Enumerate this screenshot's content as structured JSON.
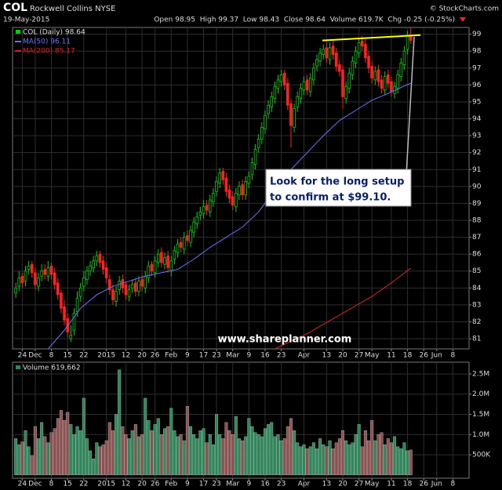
{
  "header": {
    "symbol": "COL",
    "name": "Rockwell Collins NYSE",
    "source": "© StockCharts.com",
    "date": "19-May-2015",
    "quote": "Open 98.95  High 99.37  Low 98.43  Close 98.64  Volume 619.7K  Chg -0.25 (-0.25%)"
  },
  "chart_data": [
    {
      "type": "candlestick",
      "name": "COL (Daily) 98.64",
      "up_color": "#00d000",
      "down_color": "#ff2020",
      "open": [
        83.7,
        84.1,
        84.7,
        84.4,
        85.1,
        85.4,
        84.9,
        84.1,
        84.7,
        85.1,
        84.7,
        85.3,
        84.9,
        84.3,
        83.7,
        82.9,
        82.2,
        81.0,
        81.5,
        82.6,
        83.5,
        84.1,
        84.5,
        85.0,
        85.2,
        85.6,
        86.0,
        85.6,
        85.2,
        84.5,
        83.9,
        83.2,
        83.9,
        84.5,
        84.2,
        83.5,
        84.0,
        84.3,
        83.8,
        84.5,
        84.0,
        84.6,
        85.4,
        84.9,
        85.5,
        86.1,
        85.4,
        85.9,
        85.0,
        85.7,
        86.1,
        86.7,
        86.3,
        87.1,
        86.7,
        87.3,
        87.8,
        88.3,
        88.4,
        88.9,
        88.5,
        89.1,
        89.7,
        90.2,
        90.9,
        90.5,
        89.8,
        89.4,
        88.8,
        89.5,
        90.1,
        89.5,
        90.2,
        90.7,
        91.3,
        92.3,
        92.8,
        93.4,
        94.3,
        94.7,
        95.2,
        95.8,
        96.2,
        96.7,
        96.1,
        94.9,
        93.5,
        94.7,
        95.2,
        95.7,
        96.3,
        95.6,
        96.3,
        97.1,
        97.4,
        97.8,
        98.2,
        97.5,
        98.3,
        97.9,
        97.2,
        96.9,
        95.2,
        95.8,
        96.6,
        97.3,
        97.9,
        98.6,
        98.4,
        97.7,
        97.1,
        96.3,
        96.9,
        96.3,
        95.7,
        96.6,
        96.2,
        95.5,
        95.8,
        96.5,
        97.2,
        98.1,
        98.95
      ],
      "high": [
        84.3,
        85.0,
        84.9,
        85.3,
        85.6,
        85.6,
        85.2,
        84.9,
        85.4,
        85.4,
        85.6,
        85.5,
        85.2,
        84.6,
        83.9,
        83.3,
        82.5,
        81.8,
        82.8,
        83.8,
        84.3,
        85.0,
        85.3,
        85.6,
        85.9,
        86.2,
        86.2,
        85.9,
        85.5,
        84.8,
        84.2,
        84.1,
        84.7,
        84.8,
        84.4,
        84.2,
        84.5,
        84.6,
        84.7,
        84.8,
        85.0,
        85.6,
        85.6,
        85.9,
        86.3,
        86.4,
        86.1,
        86.2,
        85.9,
        86.5,
        86.9,
        87.0,
        87.3,
        87.4,
        87.7,
        88.2,
        88.5,
        88.8,
        89.2,
        89.2,
        89.5,
        89.9,
        90.6,
        91.1,
        91.1,
        90.8,
        90.1,
        89.7,
        89.9,
        90.3,
        90.4,
        90.6,
        90.9,
        91.7,
        92.5,
        93.1,
        93.8,
        94.5,
        95.1,
        95.6,
        96.2,
        96.6,
        96.9,
        96.9,
        96.4,
        95.2,
        94.9,
        95.6,
        96.1,
        96.5,
        96.6,
        96.7,
        97.3,
        97.8,
        98.2,
        98.4,
        98.5,
        98.5,
        98.6,
        98.2,
        97.5,
        97.2,
        96.2,
        97.0,
        97.7,
        98.3,
        98.8,
        98.9,
        98.7,
        98.0,
        97.4,
        97.1,
        97.2,
        96.6,
        96.8,
        96.9,
        96.5,
        96.2,
        96.9,
        97.6,
        98.3,
        99.19,
        99.37
      ],
      "low": [
        83.4,
        83.8,
        84.0,
        84.1,
        84.8,
        84.6,
        83.9,
        83.8,
        84.4,
        84.5,
        84.4,
        84.5,
        83.9,
        83.3,
        82.5,
        81.8,
        81.1,
        80.8,
        81.2,
        82.3,
        83.2,
        83.8,
        84.2,
        84.7,
        84.9,
        85.3,
        85.2,
        84.8,
        84.3,
        83.6,
        83.0,
        82.9,
        83.6,
        83.7,
        83.3,
        83.2,
        83.7,
        83.5,
        83.5,
        83.8,
        83.7,
        84.3,
        84.7,
        84.6,
        85.2,
        85.2,
        85.1,
        84.9,
        84.7,
        85.4,
        85.8,
        86.1,
        86.0,
        86.5,
        86.4,
        87.0,
        87.5,
        88.0,
        88.1,
        88.3,
        88.2,
        88.8,
        89.4,
        89.9,
        90.1,
        89.4,
        89.0,
        88.6,
        88.5,
        89.2,
        89.2,
        89.2,
        89.9,
        90.4,
        91.0,
        92.0,
        92.5,
        93.1,
        94.0,
        94.4,
        94.9,
        95.5,
        95.9,
        95.7,
        94.5,
        92.3,
        93.2,
        94.4,
        94.9,
        95.4,
        95.4,
        95.3,
        96.0,
        96.8,
        97.1,
        97.5,
        97.3,
        97.2,
        97.5,
        96.8,
        96.5,
        94.6,
        94.9,
        95.5,
        96.3,
        97.0,
        97.6,
        98.0,
        97.3,
        96.7,
        96.1,
        96.0,
        95.9,
        95.5,
        95.4,
        95.8,
        95.3,
        95.2,
        95.5,
        96.2,
        96.9,
        97.8,
        98.43
      ],
      "close": [
        84.0,
        84.6,
        84.3,
        85.0,
        85.3,
        84.9,
        84.2,
        84.6,
        85.0,
        84.8,
        85.2,
        84.8,
        84.2,
        83.6,
        82.8,
        82.1,
        81.4,
        81.2,
        82.5,
        83.4,
        84.0,
        84.6,
        85.0,
        85.3,
        85.6,
        85.9,
        85.5,
        85.1,
        84.6,
        83.9,
        83.3,
        83.8,
        84.4,
        84.0,
        83.6,
        83.9,
        84.2,
        83.8,
        84.4,
        84.1,
        84.7,
        85.3,
        85.0,
        85.6,
        86.0,
        85.5,
        85.8,
        85.2,
        85.6,
        86.2,
        86.6,
        86.4,
        87.0,
        86.8,
        87.4,
        87.9,
        88.2,
        88.5,
        88.8,
        88.6,
        89.2,
        89.6,
        90.3,
        90.8,
        90.4,
        89.7,
        89.3,
        88.9,
        89.6,
        90.0,
        89.5,
        90.3,
        90.6,
        91.4,
        92.2,
        92.8,
        93.5,
        94.2,
        94.8,
        95.3,
        95.9,
        96.3,
        96.6,
        96.0,
        94.8,
        93.6,
        94.6,
        95.3,
        95.8,
        96.2,
        95.7,
        96.4,
        97.0,
        97.5,
        97.9,
        98.1,
        97.6,
        98.2,
        97.8,
        97.1,
        96.8,
        95.3,
        95.9,
        96.7,
        97.4,
        98.0,
        98.5,
        98.3,
        97.6,
        97.0,
        96.4,
        96.8,
        96.2,
        95.8,
        96.5,
        96.1,
        95.6,
        95.9,
        96.6,
        97.3,
        98.0,
        98.89,
        98.64
      ],
      "series": [
        {
          "name": "MA(50) 96.11",
          "color": "#7070ff",
          "x": [
            10,
            15,
            20,
            25,
            30,
            35,
            40,
            45,
            50,
            55,
            60,
            65,
            70,
            75,
            80,
            85,
            90,
            95,
            100,
            105,
            110,
            115,
            122
          ],
          "values": [
            80.4,
            81.5,
            82.8,
            83.6,
            84.1,
            84.4,
            84.7,
            84.9,
            85.1,
            85.7,
            86.4,
            87.0,
            87.6,
            88.5,
            89.8,
            91.0,
            92.0,
            93.0,
            93.9,
            94.5,
            95.1,
            95.5,
            96.11
          ]
        },
        {
          "name": "MA(200) 85.17",
          "color": "#e02020",
          "x": [
            80,
            90,
            100,
            110,
            116,
            122
          ],
          "values": [
            80.4,
            81.3,
            82.4,
            83.5,
            84.3,
            85.17
          ]
        }
      ],
      "trendline": {
        "color": "#ffff00",
        "x": [
          94.7,
          125
        ],
        "values": [
          98.63,
          98.95
        ]
      },
      "annotation": [
        "Look for the long setup",
        "to confirm at $99.10."
      ],
      "watermark": "www.shareplanner.com",
      "xlim": [
        -1,
        140
      ],
      "ylim": [
        80.4,
        99.4
      ],
      "yticks": [
        81,
        82,
        83,
        84,
        85,
        86,
        87,
        88,
        89,
        90,
        91,
        92,
        93,
        94,
        95,
        96,
        97,
        98,
        99
      ],
      "grid": true,
      "xticks": [
        {
          "value": 2,
          "label": "24"
        },
        {
          "value": 6,
          "label": "Dec"
        },
        {
          "value": 11,
          "label": "8"
        },
        {
          "value": 16,
          "label": "15"
        },
        {
          "value": 21,
          "label": "22"
        },
        {
          "value": 28,
          "label": "2015"
        },
        {
          "value": 34,
          "label": "12"
        },
        {
          "value": 39,
          "label": "20"
        },
        {
          "value": 43,
          "label": "26"
        },
        {
          "value": 48,
          "label": "Feb"
        },
        {
          "value": 53,
          "label": "9"
        },
        {
          "value": 58,
          "label": "17"
        },
        {
          "value": 62,
          "label": "23"
        },
        {
          "value": 67,
          "label": "Mar"
        },
        {
          "value": 72,
          "label": "9"
        },
        {
          "value": 77,
          "label": "16"
        },
        {
          "value": 82,
          "label": "23"
        },
        {
          "value": 89,
          "label": "Apr"
        },
        {
          "value": 96,
          "label": "13"
        },
        {
          "value": 101,
          "label": "20"
        },
        {
          "value": 106,
          "label": "27"
        },
        {
          "value": 110,
          "label": "May"
        },
        {
          "value": 116,
          "label": "11"
        },
        {
          "value": 121,
          "label": "18"
        },
        {
          "value": 126,
          "label": "26"
        },
        {
          "value": 130,
          "label": "Jun"
        },
        {
          "value": 135,
          "label": "8"
        }
      ]
    },
    {
      "type": "bar",
      "name": "Volume 619,662",
      "up_color": "#2a8a5a",
      "down_color": "#905050",
      "values": [
        900000,
        750000,
        820000,
        1100000,
        700000,
        480000,
        1200000,
        900000,
        1300000,
        950000,
        800000,
        1050000,
        1150000,
        1400000,
        1600000,
        1350000,
        1550000,
        1250000,
        1000000,
        1200000,
        1100000,
        1900000,
        900000,
        600000,
        400000,
        800000,
        700000,
        750000,
        850000,
        1300000,
        1100000,
        1500000,
        2600000,
        1200000,
        1000000,
        900000,
        1100000,
        1250000,
        950000,
        1000000,
        1900000,
        1350000,
        1100000,
        1250000,
        1400000,
        1000000,
        1150000,
        1200000,
        1650000,
        1100000,
        950000,
        1000000,
        850000,
        1700000,
        1200000,
        1000000,
        900000,
        1100000,
        1150000,
        800000,
        1000000,
        750000,
        1500000,
        1000000,
        900000,
        1300000,
        1100000,
        1000000,
        1450000,
        900000,
        850000,
        950000,
        1400000,
        1200000,
        1050000,
        1000000,
        950000,
        1150000,
        1250000,
        1300000,
        950000,
        1000000,
        850000,
        900000,
        1200000,
        1400000,
        1100000,
        800000,
        700000,
        750000,
        650000,
        700000,
        800000,
        650000,
        900000,
        750000,
        700000,
        850000,
        650000,
        800000,
        900000,
        1100000,
        850000,
        750000,
        800000,
        1000000,
        1250000,
        700000,
        1100000,
        850000,
        1350000,
        850000,
        1000000,
        1050000,
        750000,
        900000,
        800000,
        950000,
        700000,
        650000,
        800000,
        600000,
        619662
      ],
      "xlim": [
        -1,
        140
      ],
      "ylim": [
        -80000,
        2790000
      ],
      "grid": true,
      "yticks": [
        {
          "value": 500000,
          "label": "500K"
        },
        {
          "value": 1000000,
          "label": "1.0M"
        },
        {
          "value": 1500000,
          "label": "1.5M"
        },
        {
          "value": 2000000,
          "label": "2.0M"
        },
        {
          "value": 2500000,
          "label": "2.5M"
        }
      ],
      "xticks": [
        {
          "value": 2,
          "label": "24"
        },
        {
          "value": 6,
          "label": "Dec"
        },
        {
          "value": 11,
          "label": "8"
        },
        {
          "value": 16,
          "label": "15"
        },
        {
          "value": 21,
          "label": "22"
        },
        {
          "value": 28,
          "label": "2015"
        },
        {
          "value": 34,
          "label": "12"
        },
        {
          "value": 39,
          "label": "20"
        },
        {
          "value": 43,
          "label": "26"
        },
        {
          "value": 48,
          "label": "Feb"
        },
        {
          "value": 53,
          "label": "9"
        },
        {
          "value": 58,
          "label": "17"
        },
        {
          "value": 62,
          "label": "23"
        },
        {
          "value": 67,
          "label": "Mar"
        },
        {
          "value": 72,
          "label": "9"
        },
        {
          "value": 77,
          "label": "16"
        },
        {
          "value": 82,
          "label": "23"
        },
        {
          "value": 89,
          "label": "Apr"
        },
        {
          "value": 96,
          "label": "13"
        },
        {
          "value": 101,
          "label": "20"
        },
        {
          "value": 106,
          "label": "27"
        },
        {
          "value": 110,
          "label": "May"
        },
        {
          "value": 116,
          "label": "11"
        },
        {
          "value": 121,
          "label": "18"
        },
        {
          "value": 126,
          "label": "26"
        },
        {
          "value": 130,
          "label": "Jun"
        },
        {
          "value": 135,
          "label": "8"
        }
      ]
    }
  ]
}
